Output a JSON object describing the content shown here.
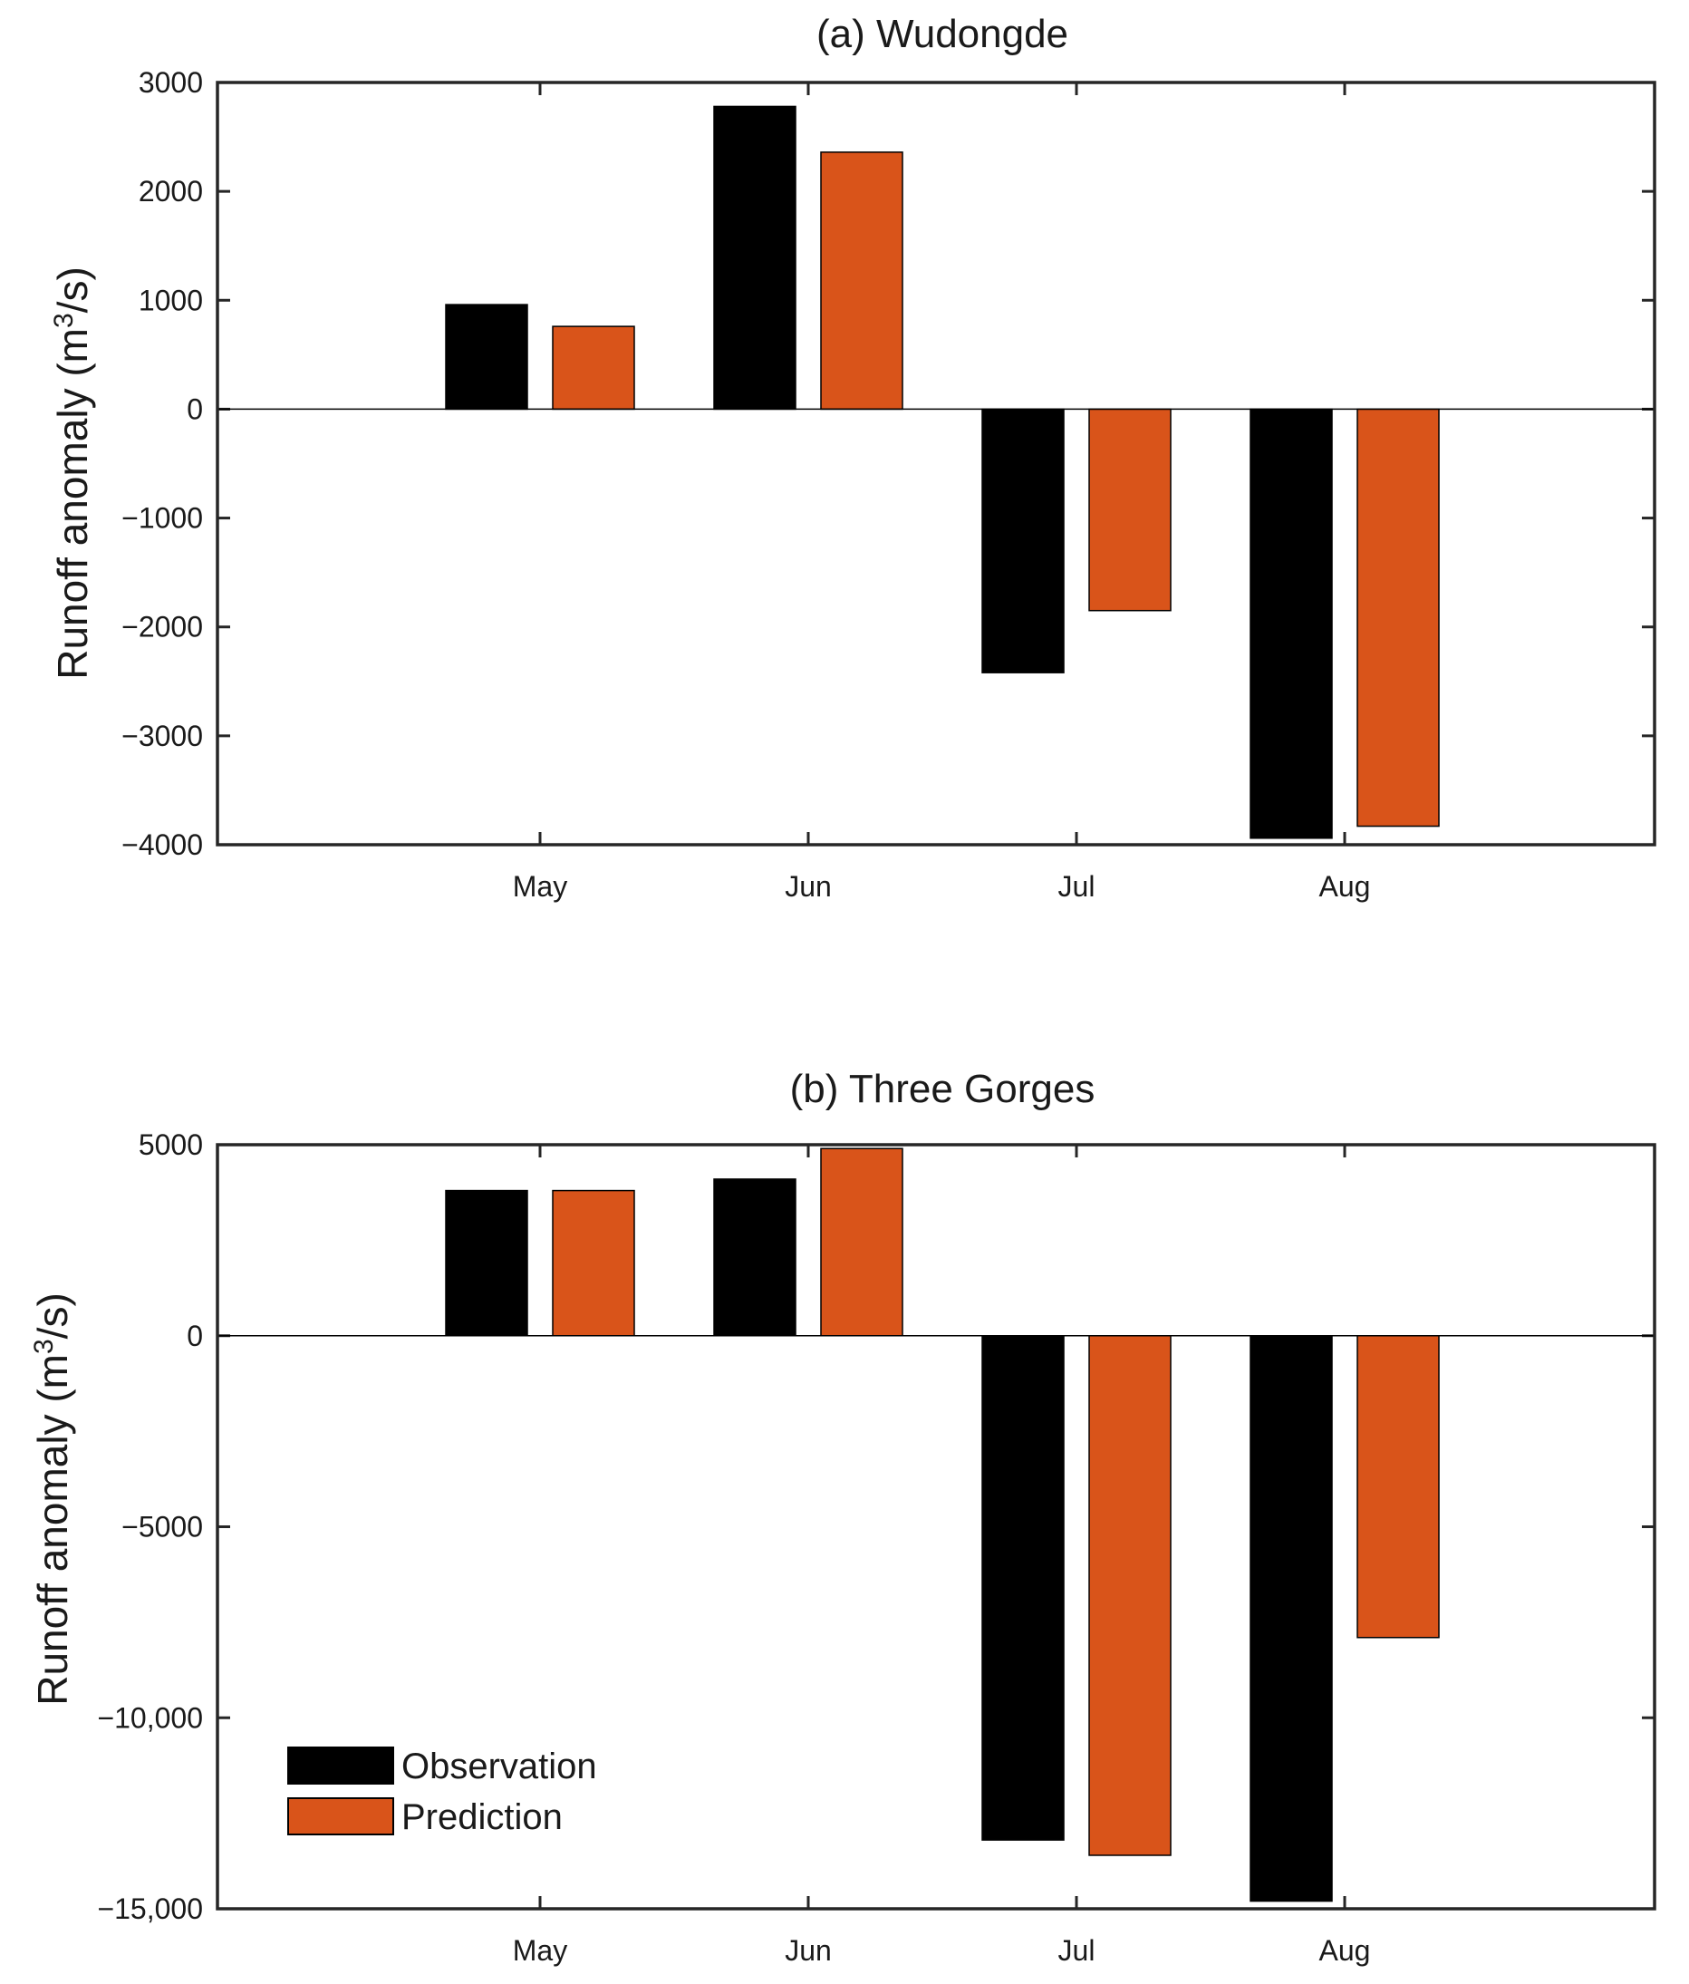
{
  "colors": {
    "observation": "#000000",
    "prediction": "#d9541a",
    "axis": "#262626"
  },
  "legend": {
    "observation_label": "Observation",
    "prediction_label": "Prediction"
  },
  "chart_data": [
    {
      "type": "bar",
      "title": "(a) Wudongde",
      "xlabel": "",
      "ylabel_main": "Runoff anomaly (m",
      "ylabel_sup": "3",
      "ylabel_tail": "/s)",
      "categories": [
        "May",
        "Jun",
        "Jul",
        "Aug"
      ],
      "ylim": [
        -4000,
        3000
      ],
      "yticks": [
        -4000,
        -3000,
        -2000,
        -1000,
        0,
        1000,
        2000,
        3000
      ],
      "ytick_labels": [
        "−4000",
        "−3000",
        "−2000",
        "−1000",
        "0",
        "1000",
        "2000",
        "3000"
      ],
      "series": [
        {
          "name": "Observation",
          "values": [
            960,
            2780,
            -2420,
            -3940
          ]
        },
        {
          "name": "Prediction",
          "values": [
            760,
            2360,
            -1850,
            -3830
          ]
        }
      ]
    },
    {
      "type": "bar",
      "title": "(b) Three Gorges",
      "xlabel": "",
      "ylabel_main": "Runoff anomaly (m",
      "ylabel_sup": "3",
      "ylabel_tail": "/s)",
      "categories": [
        "May",
        "Jun",
        "Jul",
        "Aug"
      ],
      "ylim": [
        -15000,
        5000
      ],
      "yticks": [
        -15000,
        -10000,
        -5000,
        0,
        5000
      ],
      "ytick_labels": [
        "−15,000",
        "−10,000",
        "−5000",
        "0",
        "5000"
      ],
      "series": [
        {
          "name": "Observation",
          "values": [
            3800,
            4100,
            -13200,
            -14800
          ]
        },
        {
          "name": "Prediction",
          "values": [
            3800,
            4900,
            -13600,
            -7900
          ]
        }
      ]
    }
  ]
}
